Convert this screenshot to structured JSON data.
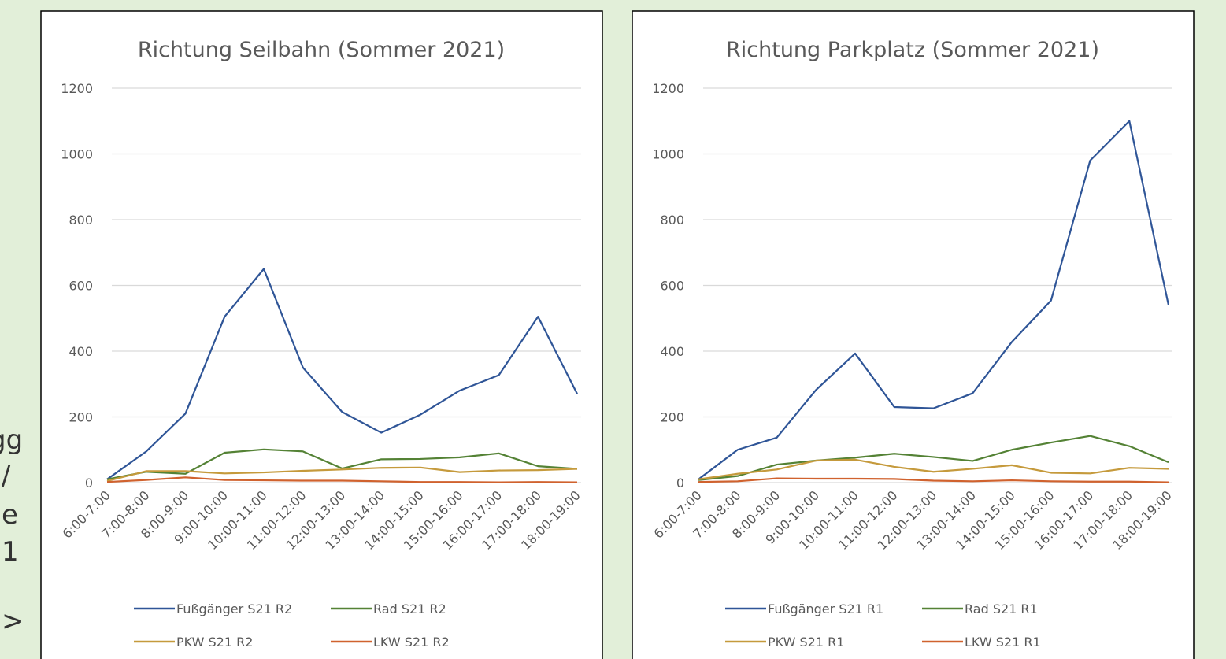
{
  "side_text": [
    "gg",
    "/",
    "e",
    "1",
    ">"
  ],
  "chart_data": [
    {
      "type": "line",
      "title": "Richtung Seilbahn (Sommer 2021)",
      "categories": [
        "6:00-7:00",
        "7:00-8:00",
        "8:00-9:00",
        "9:00-10:00",
        "10:00-11:00",
        "11:00-12:00",
        "12:00-13:00",
        "13:00-14:00",
        "14:00-15:00",
        "15:00-16:00",
        "16:00-17:00",
        "17:00-18:00",
        "18:00-19:00"
      ],
      "series": [
        {
          "name": "Fußgänger S21 R2",
          "color": "#2f5597",
          "values": [
            10,
            95,
            210,
            505,
            650,
            350,
            215,
            152,
            207,
            280,
            327,
            505,
            270
          ]
        },
        {
          "name": "Rad S21 R2",
          "color": "#548235",
          "values": [
            10,
            33,
            27,
            91,
            101,
            95,
            43,
            71,
            72,
            77,
            89,
            50,
            42
          ]
        },
        {
          "name": "PKW S21 R2",
          "color": "#c59a3c",
          "values": [
            5,
            35,
            35,
            28,
            31,
            36,
            40,
            45,
            46,
            32,
            37,
            38,
            42
          ]
        },
        {
          "name": "LKW S21 R2",
          "color": "#d0622e",
          "values": [
            2,
            8,
            16,
            8,
            7,
            6,
            6,
            4,
            2,
            2,
            1,
            2,
            1
          ]
        }
      ],
      "ylim": [
        0,
        1200
      ],
      "yticks": [
        0,
        200,
        400,
        600,
        800,
        1000,
        1200
      ],
      "grid": true,
      "legend": "bottom"
    },
    {
      "type": "line",
      "title": "Richtung Parkplatz (Sommer 2021)",
      "categories": [
        "6:00-7:00",
        "7:00-8:00",
        "8:00-9:00",
        "9:00-10:00",
        "10:00-11:00",
        "11:00-12:00",
        "12:00-13:00",
        "13:00-14:00",
        "14:00-15:00",
        "15:00-16:00",
        "16:00-17:00",
        "17:00-18:00",
        "18:00-19:00"
      ],
      "series": [
        {
          "name": "Fußgänger S21 R1",
          "color": "#2f5597",
          "values": [
            10,
            100,
            137,
            282,
            393,
            230,
            226,
            272,
            428,
            554,
            980,
            1100,
            540
          ]
        },
        {
          "name": "Rad S21 R1",
          "color": "#548235",
          "values": [
            8,
            20,
            55,
            67,
            76,
            88,
            78,
            66,
            100,
            122,
            142,
            111,
            62
          ]
        },
        {
          "name": "PKW S21 R1",
          "color": "#c59a3c",
          "values": [
            10,
            27,
            40,
            67,
            70,
            48,
            33,
            42,
            53,
            30,
            28,
            45,
            42
          ]
        },
        {
          "name": "LKW S21 R1",
          "color": "#d0622e",
          "values": [
            2,
            4,
            13,
            12,
            12,
            11,
            6,
            4,
            7,
            4,
            3,
            3,
            1
          ]
        }
      ],
      "ylim": [
        0,
        1200
      ],
      "yticks": [
        0,
        200,
        400,
        600,
        800,
        1000,
        1200
      ],
      "grid": true,
      "legend": "bottom"
    }
  ]
}
